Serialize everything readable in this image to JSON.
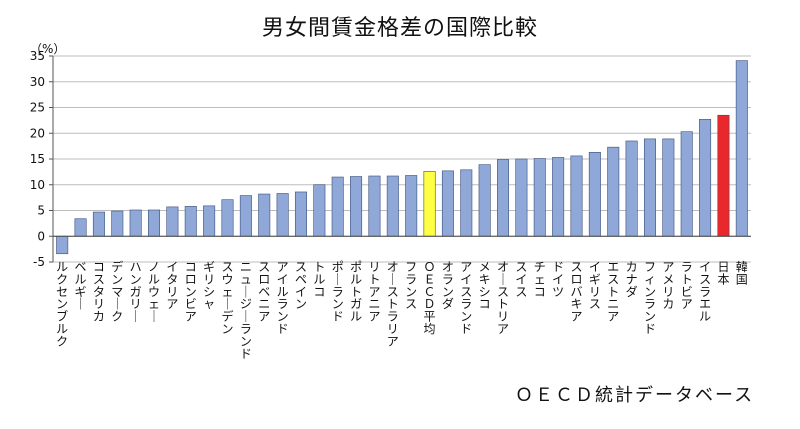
{
  "chart_data": {
    "type": "bar",
    "title": "男女間賃金格差の国際比較",
    "unit_label": "（%）",
    "source": "ＯＥＣＤ統計データベース",
    "ylim": [
      -5,
      35
    ],
    "yticks": [
      -5,
      0,
      5,
      10,
      15,
      20,
      25,
      30,
      35
    ],
    "grid": true,
    "categories": [
      "ルクセンブルク",
      "ベルギー",
      "コスタリカ",
      "デンマーク",
      "ハンガリー",
      "ノルウェー",
      "イタリア",
      "コロンビア",
      "ギリシャ",
      "スウェーデン",
      "ニュージーランド",
      "スロベニア",
      "アイルランド",
      "スペイン",
      "トルコ",
      "ポーランド",
      "ポルトガル",
      "リトアニア",
      "オーストラリア",
      "フランス",
      "ＯＥＣＤ平均",
      "オランダ",
      "アイスランド",
      "メキシコ",
      "オーストリア",
      "スイス",
      "チェコ",
      "ドイツ",
      "スロバキア",
      "イギリス",
      "エストニア",
      "カナダ",
      "フィンランド",
      "アメリカ",
      "ラトビア",
      "イスラエル",
      "日本",
      "韓国"
    ],
    "values": [
      -3.4,
      3.4,
      4.7,
      4.9,
      5.1,
      5.1,
      5.7,
      5.8,
      5.9,
      7.1,
      7.9,
      8.2,
      8.3,
      8.6,
      10.0,
      11.5,
      11.6,
      11.7,
      11.7,
      11.8,
      12.6,
      12.7,
      12.9,
      13.9,
      14.9,
      15.0,
      15.1,
      15.3,
      15.6,
      16.3,
      17.3,
      18.5,
      18.9,
      18.9,
      20.3,
      22.7,
      23.5,
      34.1
    ],
    "colors": {
      "default": "#8fa8d8",
      "oecd": "#ffff44",
      "japan": "#e8282c",
      "stroke": "#3a4f7a"
    }
  }
}
